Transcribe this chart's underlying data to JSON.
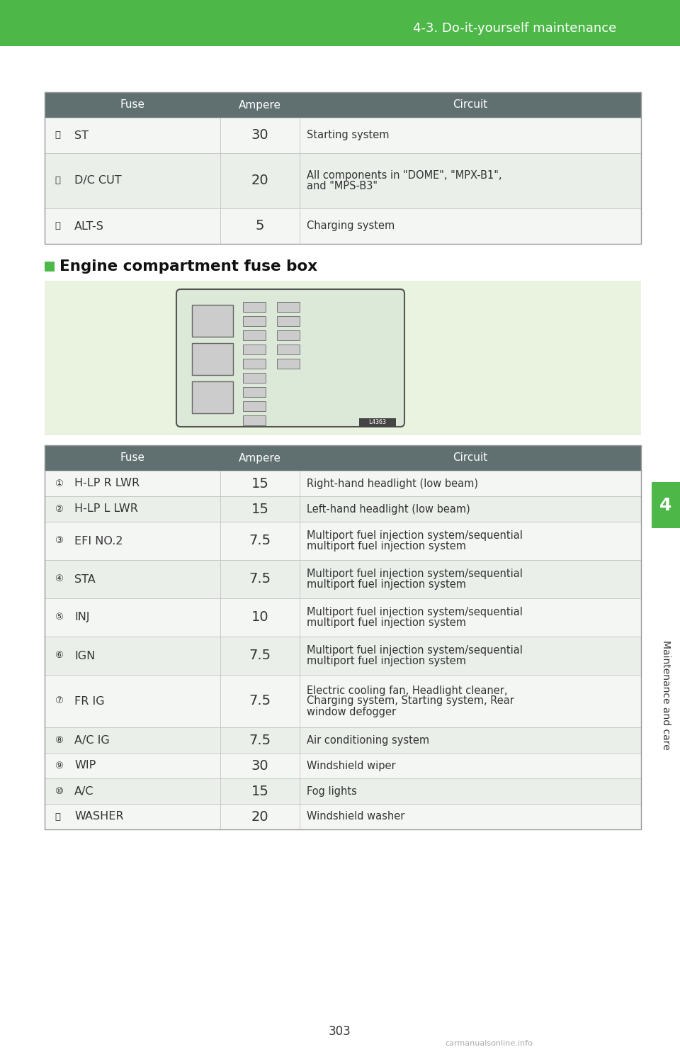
{
  "page_bg": "#ffffff",
  "header_bg": "#4db848",
  "header_text": "4-3. Do-it-yourself maintenance",
  "header_text_color": "#ffffff",
  "side_tab_bg": "#4db848",
  "side_tab_text": "Maintenance and care",
  "side_tab_text_color": "#333333",
  "page_number": "303",
  "section_header_bg": "#607070",
  "section_header_text_color": "#ffffff",
  "row_alt_bg": "#eaefea",
  "row_bg": "#f4f6f4",
  "fuse_diagram_bg": "#eaf2e0",
  "engine_section_title": "Engine compartment fuse box",
  "engine_section_bullet_color": "#4db848",
  "top_table_rows": [
    {
      "num": "⑵",
      "fuse": "ST",
      "ampere": "30",
      "circuit": "Starting system",
      "multiline": false
    },
    {
      "num": "⑶",
      "fuse": "D/C CUT",
      "ampere": "20",
      "circuit": "All components in \"DOME\", \"MPX-B1\",\nand \"MPS-B3\"",
      "multiline": true
    },
    {
      "num": "⑷",
      "fuse": "ALT-S",
      "ampere": "5",
      "circuit": "Charging system",
      "multiline": false
    }
  ],
  "bottom_table_rows": [
    {
      "num": "①",
      "fuse": "H-LP R LWR",
      "ampere": "15",
      "circuit": "Right-hand headlight (low beam)",
      "multiline": false
    },
    {
      "num": "②",
      "fuse": "H-LP L LWR",
      "ampere": "15",
      "circuit": "Left-hand headlight (low beam)",
      "multiline": false
    },
    {
      "num": "③",
      "fuse": "EFI NO.2",
      "ampere": "7.5",
      "circuit": "Multiport fuel injection system/sequential\nmultiport fuel injection system",
      "multiline": true
    },
    {
      "num": "④",
      "fuse": "STA",
      "ampere": "7.5",
      "circuit": "Multiport fuel injection system/sequential\nmultiport fuel injection system",
      "multiline": true
    },
    {
      "num": "⑤",
      "fuse": "INJ",
      "ampere": "10",
      "circuit": "Multiport fuel injection system/sequential\nmultiport fuel injection system",
      "multiline": true
    },
    {
      "num": "⑥",
      "fuse": "IGN",
      "ampere": "7.5",
      "circuit": "Multiport fuel injection system/sequential\nmultiport fuel injection system",
      "multiline": true
    },
    {
      "num": "⑦",
      "fuse": "FR IG",
      "ampere": "7.5",
      "circuit": "Electric cooling fan, Headlight cleaner,\nCharging system, Starting system, Rear\nwindow defogger",
      "multiline": true
    },
    {
      "num": "⑧",
      "fuse": "A/C IG",
      "ampere": "7.5",
      "circuit": "Air conditioning system",
      "multiline": false
    },
    {
      "num": "⑨",
      "fuse": "WIP",
      "ampere": "30",
      "circuit": "Windshield wiper",
      "multiline": false
    },
    {
      "num": "⑩",
      "fuse": "A/C",
      "ampere": "15",
      "circuit": "Fog lights",
      "multiline": false
    },
    {
      "num": "⑪",
      "fuse": "WASHER",
      "ampere": "20",
      "circuit": "Windshield washer",
      "multiline": false
    }
  ]
}
